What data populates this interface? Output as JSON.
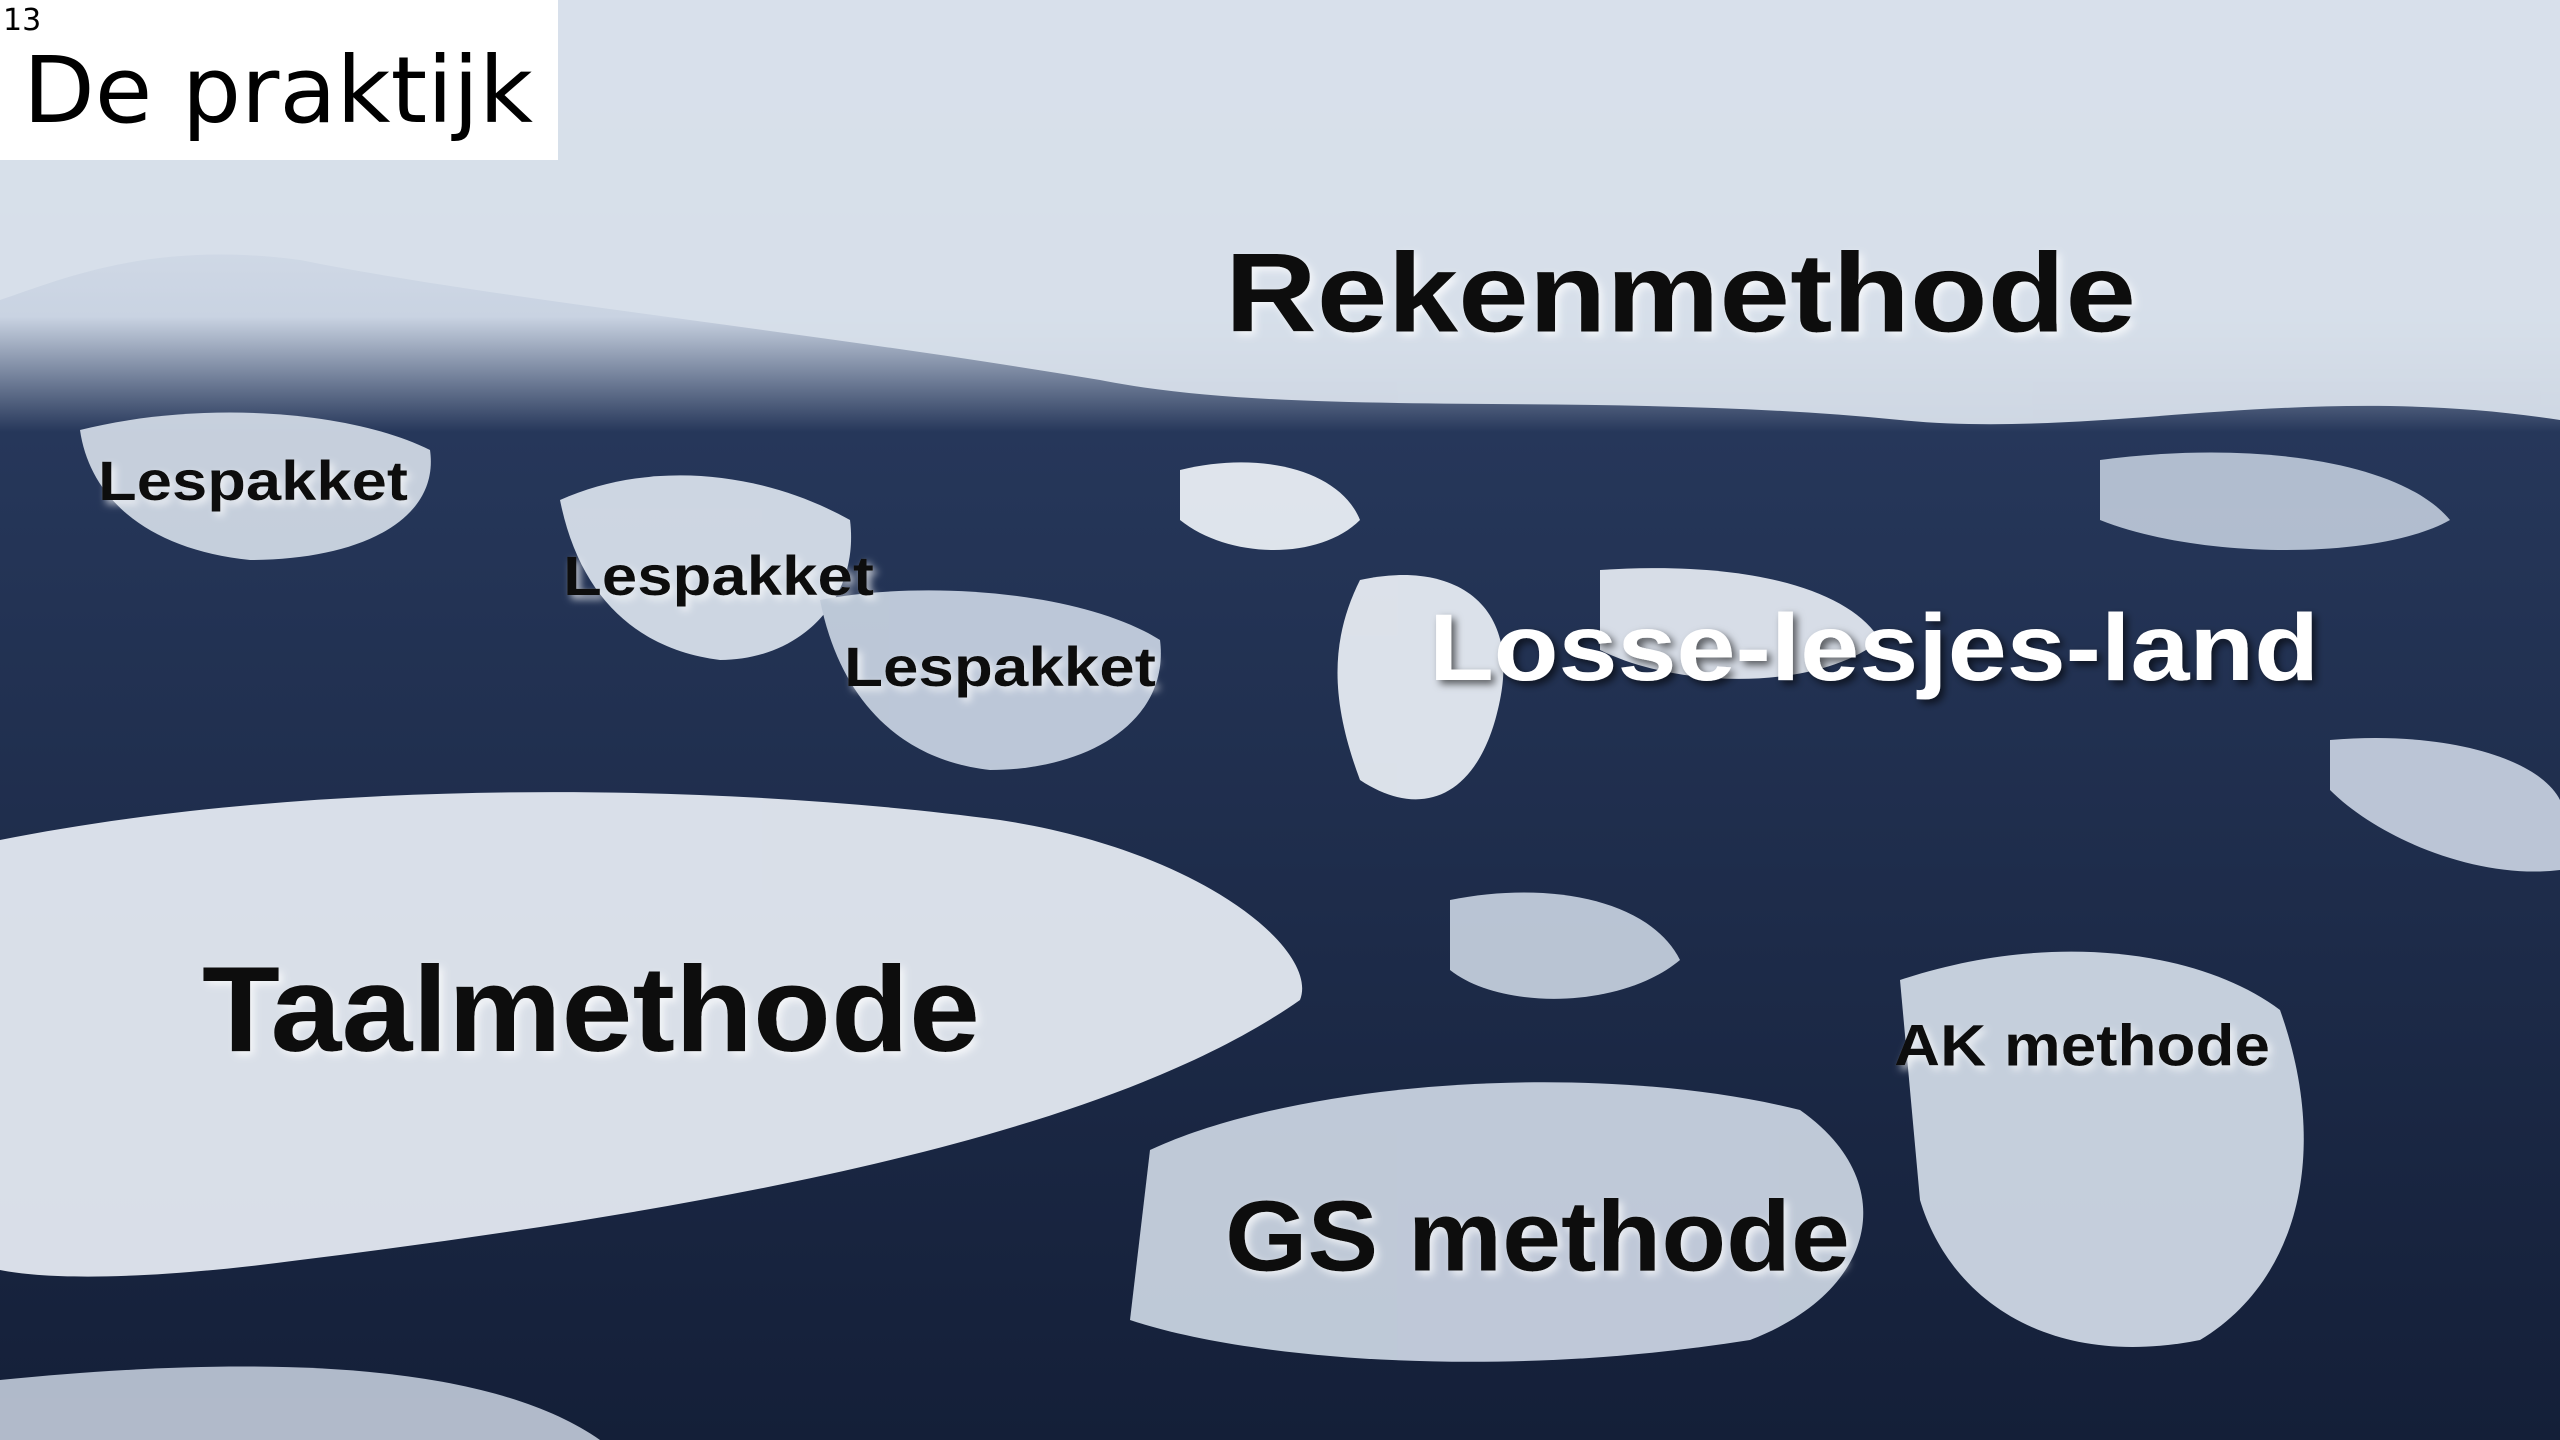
{
  "slide": {
    "number": "13",
    "title": "De praktijk",
    "labels": [
      "Rekenmethode",
      "Lespakket",
      "Lespakket",
      "Lespakket",
      "Losse-lesjes-land",
      "Taalmethode",
      "AK methode",
      "GS methode"
    ]
  }
}
